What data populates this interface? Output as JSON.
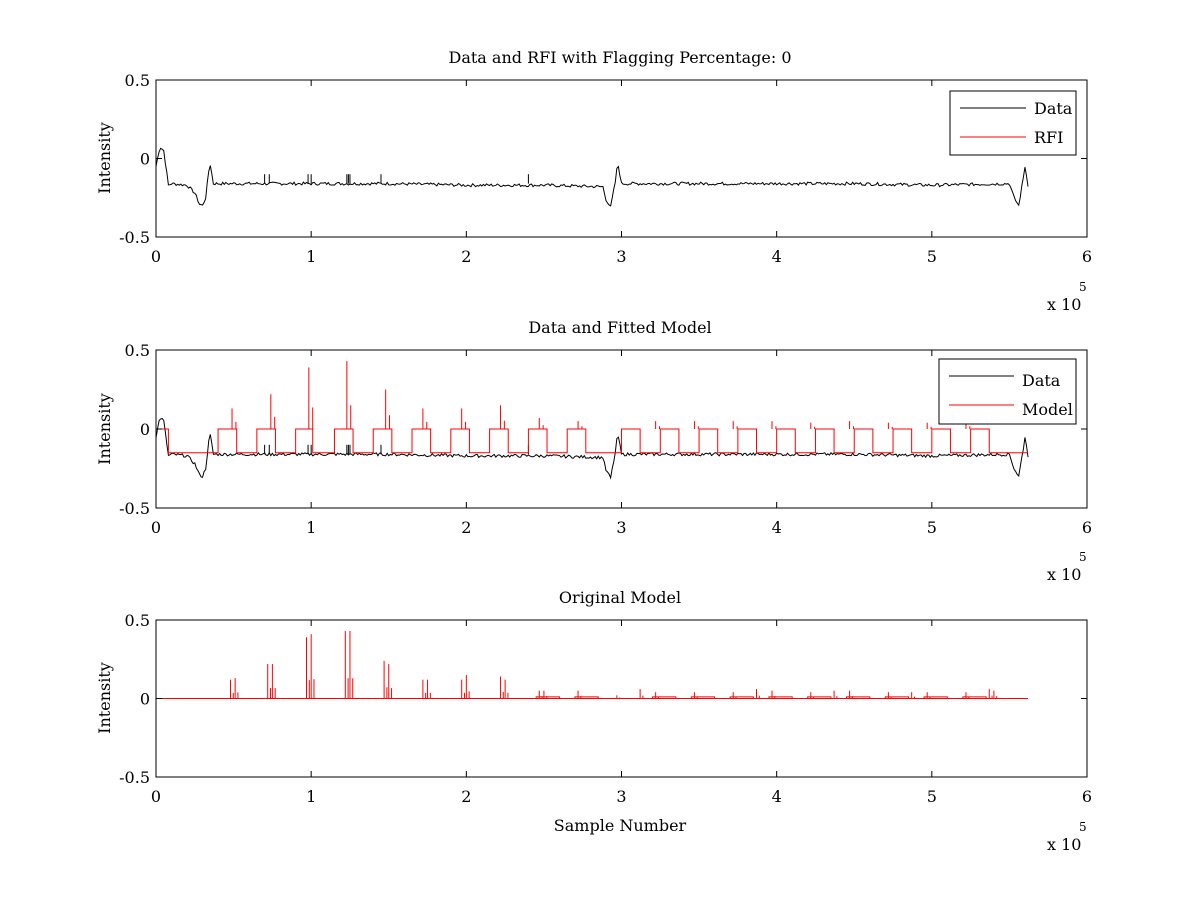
{
  "chart_data": [
    {
      "type": "line",
      "title": "Data and RFI with Flagging Percentage: 0",
      "xlabel": "",
      "ylabel": "Intensity",
      "xlim": [
        0,
        600000
      ],
      "ylim": [
        -0.5,
        0.5
      ],
      "xticks": [
        0,
        1,
        2,
        3,
        4,
        5,
        6
      ],
      "xtick_labels": [
        "0",
        "1",
        "2",
        "3",
        "4",
        "5",
        "6"
      ],
      "yticks": [
        -0.5,
        0,
        0.5
      ],
      "ytick_labels": [
        "-0.5",
        "0",
        "0.5"
      ],
      "x_multiplier": "x 10",
      "x_multiplier_exp": "5",
      "legend": {
        "placement": "top-right",
        "entries": [
          "Data",
          "RFI"
        ]
      },
      "series": [
        {
          "name": "Data",
          "color": "#000000",
          "x": [
            0,
            2000,
            3000,
            5000,
            8000,
            10000,
            20000,
            25000,
            28000,
            30000,
            32000,
            34000,
            35000,
            37000,
            60000,
            100000,
            150000,
            200000,
            250000,
            288000,
            290000,
            293000,
            296000,
            297000,
            298000,
            300000,
            350000,
            400000,
            450000,
            500000,
            550000,
            553000,
            556000,
            559000,
            560000,
            562000
          ],
          "y": [
            -0.05,
            0.05,
            0.07,
            0.05,
            -0.17,
            -0.16,
            -0.17,
            -0.22,
            -0.29,
            -0.3,
            -0.25,
            -0.08,
            -0.04,
            -0.16,
            -0.16,
            -0.16,
            -0.16,
            -0.17,
            -0.17,
            -0.18,
            -0.26,
            -0.31,
            -0.15,
            -0.07,
            -0.05,
            -0.16,
            -0.16,
            -0.16,
            -0.16,
            -0.17,
            -0.16,
            -0.25,
            -0.3,
            -0.12,
            -0.05,
            -0.17
          ]
        },
        {
          "name": "RFI",
          "color": "#ff0000",
          "x": [],
          "y": []
        }
      ]
    },
    {
      "type": "line",
      "title": "Data and Fitted Model",
      "xlabel": "",
      "ylabel": "Intensity",
      "xlim": [
        0,
        600000
      ],
      "ylim": [
        -0.5,
        0.5
      ],
      "xticks": [
        0,
        1,
        2,
        3,
        4,
        5,
        6
      ],
      "xtick_labels": [
        "0",
        "1",
        "2",
        "3",
        "4",
        "5",
        "6"
      ],
      "yticks": [
        -0.5,
        0,
        0.5
      ],
      "ytick_labels": [
        "-0.5",
        "0",
        "0.5"
      ],
      "x_multiplier": "x 10",
      "x_multiplier_exp": "5",
      "legend": {
        "placement": "top-right",
        "entries": [
          "Data",
          "Model"
        ]
      },
      "series": [
        {
          "name": "Data",
          "color": "#000000",
          "x": [
            0,
            2000,
            3000,
            5000,
            8000,
            10000,
            20000,
            25000,
            28000,
            30000,
            32000,
            34000,
            35000,
            37000,
            60000,
            100000,
            150000,
            200000,
            250000,
            288000,
            290000,
            293000,
            296000,
            297000,
            298000,
            300000,
            350000,
            400000,
            450000,
            500000,
            550000,
            553000,
            556000,
            559000,
            560000,
            562000
          ],
          "y": [
            -0.05,
            0.05,
            0.07,
            0.05,
            -0.17,
            -0.16,
            -0.17,
            -0.22,
            -0.29,
            -0.3,
            -0.25,
            -0.08,
            -0.04,
            -0.16,
            -0.16,
            -0.16,
            -0.16,
            -0.17,
            -0.17,
            -0.18,
            -0.26,
            -0.31,
            -0.15,
            -0.07,
            -0.05,
            -0.16,
            -0.16,
            -0.16,
            -0.16,
            -0.17,
            -0.16,
            -0.25,
            -0.3,
            -0.12,
            -0.05,
            -0.17
          ]
        },
        {
          "name": "Model",
          "color": "#ff0000",
          "baseline": -0.15,
          "plateau": 0.0,
          "blocks": [
            [
              0,
              8000
            ],
            [
              40000,
              52000
            ],
            [
              65000,
              77000
            ],
            [
              90000,
              101000
            ],
            [
              115000,
              127000
            ],
            [
              140000,
              152000
            ],
            [
              165000,
              177000
            ],
            [
              190000,
              202000
            ],
            [
              215000,
              227000
            ],
            [
              240000,
              252000
            ],
            [
              265000,
              277000
            ],
            [
              300000,
              312000
            ],
            [
              325000,
              337000
            ],
            [
              350000,
              362000
            ],
            [
              375000,
              387000
            ],
            [
              400000,
              412000
            ],
            [
              425000,
              437000
            ],
            [
              450000,
              462000
            ],
            [
              475000,
              487000
            ],
            [
              500000,
              512000
            ],
            [
              525000,
              537000
            ]
          ],
          "spikes": [
            [
              49000,
              0.13
            ],
            [
              74000,
              0.22
            ],
            [
              98500,
              0.39
            ],
            [
              123000,
              0.43
            ],
            [
              148000,
              0.25
            ],
            [
              172000,
              0.13
            ],
            [
              197000,
              0.13
            ],
            [
              222000,
              0.15
            ],
            [
              247000,
              0.07
            ],
            [
              272000,
              0.05
            ],
            [
              322000,
              0.05
            ],
            [
              347000,
              0.05
            ],
            [
              372000,
              0.05
            ],
            [
              397000,
              0.05
            ],
            [
              422000,
              0.04
            ],
            [
              447000,
              0.05
            ],
            [
              472000,
              0.04
            ],
            [
              497000,
              0.04
            ],
            [
              522000,
              0.05
            ]
          ]
        }
      ]
    },
    {
      "type": "line",
      "title": "Original Model",
      "xlabel": "Sample Number",
      "ylabel": "Intensity",
      "xlim": [
        0,
        600000
      ],
      "ylim": [
        -0.5,
        0.5
      ],
      "xticks": [
        0,
        1,
        2,
        3,
        4,
        5,
        6
      ],
      "xtick_labels": [
        "0",
        "1",
        "2",
        "3",
        "4",
        "5",
        "6"
      ],
      "yticks": [
        -0.5,
        0,
        0.5
      ],
      "ytick_labels": [
        "-0.5",
        "0",
        "0.5"
      ],
      "x_multiplier": "x 10",
      "x_multiplier_exp": "5",
      "series": [
        {
          "name": "Model",
          "color": "#ff0000",
          "baseline": 0.0,
          "xmax": 562000,
          "spikes": [
            [
              48000,
              0.12
            ],
            [
              51000,
              0.13
            ],
            [
              72000,
              0.22
            ],
            [
              75000,
              0.22
            ],
            [
              97000,
              0.39
            ],
            [
              100000,
              0.41
            ],
            [
              122000,
              0.43
            ],
            [
              125000,
              0.43
            ],
            [
              147000,
              0.24
            ],
            [
              150000,
              0.22
            ],
            [
              172000,
              0.12
            ],
            [
              175000,
              0.12
            ],
            [
              197000,
              0.12
            ],
            [
              200000,
              0.15
            ],
            [
              222000,
              0.14
            ],
            [
              225000,
              0.12
            ],
            [
              247000,
              0.05
            ],
            [
              250000,
              0.05
            ],
            [
              272000,
              0.05
            ],
            [
              297000,
              0.02
            ],
            [
              312000,
              0.06
            ],
            [
              322000,
              0.04
            ],
            [
              347000,
              0.04
            ],
            [
              372000,
              0.04
            ],
            [
              387000,
              0.06
            ],
            [
              397000,
              0.05
            ],
            [
              422000,
              0.04
            ],
            [
              437000,
              0.05
            ],
            [
              447000,
              0.05
            ],
            [
              472000,
              0.04
            ],
            [
              487000,
              0.04
            ],
            [
              497000,
              0.04
            ],
            [
              522000,
              0.04
            ],
            [
              537000,
              0.06
            ],
            [
              540000,
              0.05
            ]
          ],
          "block_bumps": [
            [
              245000,
              260000
            ],
            [
              270000,
              285000
            ],
            [
              320000,
              335000
            ],
            [
              345000,
              360000
            ],
            [
              370000,
              385000
            ],
            [
              395000,
              410000
            ],
            [
              420000,
              435000
            ],
            [
              445000,
              460000
            ],
            [
              470000,
              485000
            ],
            [
              495000,
              510000
            ],
            [
              520000,
              535000
            ]
          ]
        }
      ]
    }
  ]
}
